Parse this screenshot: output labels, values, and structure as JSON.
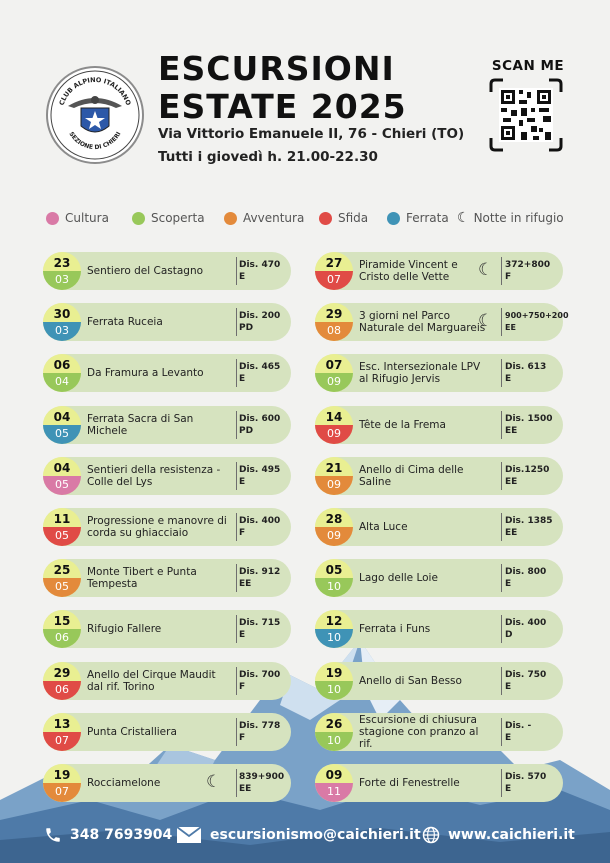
{
  "header": {
    "title_line1": "ESCURSIONI",
    "title_line2": "ESTATE 2025",
    "address": "Via Vittorio Emanuele II, 76 - Chieri (TO)",
    "schedule": "Tutti i giovedì h. 21.00-22.30",
    "logo_top_text": "CLUB ALPINO ITALIANO",
    "logo_bottom_text": "SEZIONE DI CHIERI",
    "scan_label": "SCAN ME"
  },
  "legend": [
    {
      "label": "Cultura",
      "color": "#d97aa6"
    },
    {
      "label": "Scoperta",
      "color": "#98c85a"
    },
    {
      "label": "Avventura",
      "color": "#e38a3b"
    },
    {
      "label": "Sfida",
      "color": "#e04b46"
    },
    {
      "label": "Ferrata",
      "color": "#3f93b6"
    },
    {
      "label": "Notte in rifugio",
      "icon": "moon-stars-icon"
    }
  ],
  "events_left": [
    {
      "day": "23",
      "month": "03",
      "name": "Sentiero del Castagno",
      "dist": "Dis. 470",
      "grade": "E",
      "color": "#98c85a"
    },
    {
      "day": "30",
      "month": "03",
      "name": "Ferrata Ruceia",
      "dist": "Dis. 200",
      "grade": "PD",
      "color": "#3f93b6"
    },
    {
      "day": "06",
      "month": "04",
      "name": "Da Framura a Levanto",
      "dist": "Dis. 465",
      "grade": "E",
      "color": "#98c85a"
    },
    {
      "day": "04",
      "month": "05",
      "name": "Ferrata Sacra di San Michele",
      "dist": "Dis. 600",
      "grade": "PD",
      "color": "#3f93b6"
    },
    {
      "day": "04",
      "month": "05",
      "name": "Sentieri della resistenza - Colle del Lys",
      "dist": "Dis. 495",
      "grade": "E",
      "color": "#d97aa6"
    },
    {
      "day": "11",
      "month": "05",
      "name": "Progressione e manovre di corda su ghiacciaio",
      "dist": "Dis. 400",
      "grade": "F",
      "color": "#e04b46"
    },
    {
      "day": "25",
      "month": "05",
      "name": "Monte Tibert e Punta Tempesta",
      "dist": "Dis. 912",
      "grade": "EE",
      "color": "#e38a3b"
    },
    {
      "day": "15",
      "month": "06",
      "name": "Rifugio Fallere",
      "dist": "Dis. 715",
      "grade": "E",
      "color": "#98c85a"
    },
    {
      "day": "29",
      "month": "06",
      "name": "Anello del Cirque Maudit dal rif. Torino",
      "dist": "Dis. 700",
      "grade": "F",
      "color": "#e04b46"
    },
    {
      "day": "13",
      "month": "07",
      "name": "Punta Cristalliera",
      "dist": "Dis. 778",
      "grade": "F",
      "color": "#e04b46"
    },
    {
      "day": "19",
      "month": "07",
      "name": "Rocciamelone",
      "dist": "839+900",
      "grade": "EE",
      "color": "#e38a3b",
      "refuge": true
    }
  ],
  "events_right": [
    {
      "day": "27",
      "month": "07",
      "name": "Piramide Vincent e Cristo delle Vette",
      "dist": "372+800",
      "grade": "F",
      "color": "#e04b46",
      "refuge": true
    },
    {
      "day": "29",
      "month": "08",
      "name": "3 giorni nel Parco Naturale del Marguareis",
      "dist": "900+750+200",
      "grade": "EE",
      "color": "#e38a3b",
      "refuge": true
    },
    {
      "day": "07",
      "month": "09",
      "name": "Esc. Intersezionale LPV al Rifugio Jervis",
      "dist": "Dis. 613",
      "grade": "E",
      "color": "#98c85a"
    },
    {
      "day": "14",
      "month": "09",
      "name": "Tête de la Frema",
      "dist": "Dis. 1500",
      "grade": "EE",
      "color": "#e04b46"
    },
    {
      "day": "21",
      "month": "09",
      "name": "Anello di Cima delle Saline",
      "dist": "Dis.1250",
      "grade": "EE",
      "color": "#e38a3b"
    },
    {
      "day": "28",
      "month": "09",
      "name": "Alta Luce",
      "dist": "Dis. 1385",
      "grade": "EE",
      "color": "#e38a3b"
    },
    {
      "day": "05",
      "month": "10",
      "name": "Lago delle Loie",
      "dist": "Dis. 800",
      "grade": "E",
      "color": "#98c85a"
    },
    {
      "day": "12",
      "month": "10",
      "name": "Ferrata i Funs",
      "dist": "Dis. 400",
      "grade": "D",
      "color": "#3f93b6"
    },
    {
      "day": "19",
      "month": "10",
      "name": "Anello di San Besso",
      "dist": "Dis. 750",
      "grade": "E",
      "color": "#98c85a"
    },
    {
      "day": "26",
      "month": "10",
      "name": "Escursione di chiusura stagione con pranzo al rif.",
      "dist": "Dis. -",
      "grade": "E",
      "color": "#98c85a"
    },
    {
      "day": "09",
      "month": "11",
      "name": "Forte di Fenestrelle",
      "dist": "Dis. 570",
      "grade": "E",
      "color": "#d97aa6"
    }
  ],
  "footer": {
    "phone": "348 7693904",
    "email": "escursionismo@caichieri.it",
    "website": "www.caichieri.it"
  }
}
